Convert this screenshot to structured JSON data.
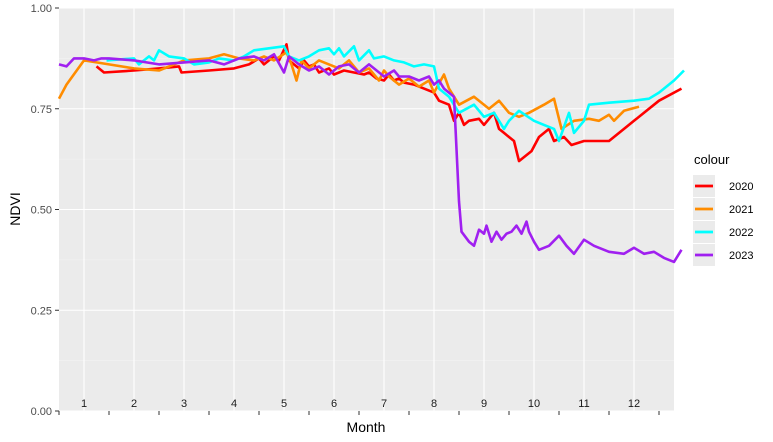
{
  "chart_data": {
    "type": "line",
    "xlabel": "Month",
    "ylabel": "NDVI",
    "xlim": [
      0,
      12.3
    ],
    "ylim": [
      0,
      1
    ],
    "y_ticks": [
      "0.00",
      "0.25",
      "0.50",
      "0.75",
      "1.00"
    ],
    "month_labels": [
      "1",
      "2",
      "3",
      "4",
      "5",
      "6",
      "7",
      "8",
      "9",
      "10",
      "11",
      "12"
    ],
    "grid": true,
    "legend": {
      "title": "colour",
      "position": "right"
    },
    "series": [
      {
        "name": "2020",
        "color": "#ff0000",
        "points": [
          [
            0.75,
            0.855
          ],
          [
            0.9,
            0.84
          ],
          [
            1.5,
            0.845
          ],
          [
            2.0,
            0.85
          ],
          [
            2.4,
            0.855
          ],
          [
            2.45,
            0.84
          ],
          [
            3.0,
            0.845
          ],
          [
            3.5,
            0.85
          ],
          [
            3.8,
            0.86
          ],
          [
            4.0,
            0.875
          ],
          [
            4.1,
            0.86
          ],
          [
            4.3,
            0.88
          ],
          [
            4.4,
            0.87
          ],
          [
            4.55,
            0.91
          ],
          [
            4.6,
            0.87
          ],
          [
            4.7,
            0.86
          ],
          [
            4.8,
            0.85
          ],
          [
            4.9,
            0.87
          ],
          [
            5.0,
            0.855
          ],
          [
            5.1,
            0.86
          ],
          [
            5.2,
            0.84
          ],
          [
            5.4,
            0.85
          ],
          [
            5.5,
            0.835
          ],
          [
            5.7,
            0.845
          ],
          [
            5.9,
            0.84
          ],
          [
            6.1,
            0.835
          ],
          [
            6.2,
            0.84
          ],
          [
            6.35,
            0.825
          ],
          [
            6.5,
            0.82
          ],
          [
            6.6,
            0.835
          ],
          [
            6.7,
            0.82
          ],
          [
            6.8,
            0.825
          ],
          [
            6.9,
            0.815
          ],
          [
            7.1,
            0.81
          ],
          [
            7.3,
            0.8
          ],
          [
            7.5,
            0.79
          ],
          [
            7.6,
            0.77
          ],
          [
            7.8,
            0.76
          ],
          [
            7.9,
            0.72
          ],
          [
            8.0,
            0.74
          ],
          [
            8.1,
            0.71
          ],
          [
            8.2,
            0.72
          ],
          [
            8.4,
            0.725
          ],
          [
            8.5,
            0.71
          ],
          [
            8.7,
            0.74
          ],
          [
            8.8,
            0.7
          ],
          [
            8.9,
            0.69
          ],
          [
            9.0,
            0.68
          ],
          [
            9.1,
            0.67
          ],
          [
            9.2,
            0.62
          ],
          [
            9.45,
            0.645
          ],
          [
            9.6,
            0.68
          ],
          [
            9.8,
            0.7
          ],
          [
            9.9,
            0.67
          ],
          [
            10.1,
            0.68
          ],
          [
            10.25,
            0.66
          ],
          [
            10.5,
            0.67
          ],
          [
            11.0,
            0.67
          ],
          [
            11.5,
            0.72
          ],
          [
            12.0,
            0.77
          ],
          [
            12.45,
            0.8
          ]
        ]
      },
      {
        "name": "2021",
        "color": "#ff8c00",
        "points": [
          [
            0.0,
            0.775
          ],
          [
            0.15,
            0.81
          ],
          [
            0.5,
            0.87
          ],
          [
            1.0,
            0.86
          ],
          [
            1.5,
            0.85
          ],
          [
            2.0,
            0.845
          ],
          [
            2.3,
            0.86
          ],
          [
            2.5,
            0.87
          ],
          [
            3.0,
            0.875
          ],
          [
            3.3,
            0.885
          ],
          [
            3.6,
            0.875
          ],
          [
            3.9,
            0.87
          ],
          [
            4.1,
            0.88
          ],
          [
            4.3,
            0.87
          ],
          [
            4.55,
            0.89
          ],
          [
            4.65,
            0.86
          ],
          [
            4.75,
            0.82
          ],
          [
            4.85,
            0.87
          ],
          [
            5.0,
            0.85
          ],
          [
            5.2,
            0.87
          ],
          [
            5.4,
            0.86
          ],
          [
            5.6,
            0.85
          ],
          [
            5.8,
            0.87
          ],
          [
            6.0,
            0.84
          ],
          [
            6.2,
            0.85
          ],
          [
            6.4,
            0.82
          ],
          [
            6.5,
            0.845
          ],
          [
            6.6,
            0.83
          ],
          [
            6.8,
            0.81
          ],
          [
            7.0,
            0.825
          ],
          [
            7.2,
            0.805
          ],
          [
            7.4,
            0.82
          ],
          [
            7.5,
            0.79
          ],
          [
            7.7,
            0.835
          ],
          [
            7.8,
            0.8
          ],
          [
            8.0,
            0.76
          ],
          [
            8.3,
            0.78
          ],
          [
            8.6,
            0.75
          ],
          [
            8.8,
            0.77
          ],
          [
            9.0,
            0.74
          ],
          [
            9.2,
            0.73
          ],
          [
            9.4,
            0.74
          ],
          [
            9.7,
            0.76
          ],
          [
            9.9,
            0.775
          ],
          [
            10.05,
            0.7
          ],
          [
            10.3,
            0.72
          ],
          [
            10.6,
            0.725
          ],
          [
            10.8,
            0.72
          ],
          [
            11.0,
            0.735
          ],
          [
            11.1,
            0.72
          ],
          [
            11.3,
            0.745
          ],
          [
            11.6,
            0.755
          ]
        ]
      },
      {
        "name": "2022",
        "color": "#00ffff",
        "points": [
          [
            0.95,
            0.87
          ],
          [
            1.5,
            0.875
          ],
          [
            1.6,
            0.86
          ],
          [
            1.8,
            0.88
          ],
          [
            1.9,
            0.87
          ],
          [
            2.0,
            0.895
          ],
          [
            2.2,
            0.88
          ],
          [
            2.5,
            0.875
          ],
          [
            2.7,
            0.86
          ],
          [
            3.0,
            0.865
          ],
          [
            3.2,
            0.875
          ],
          [
            3.5,
            0.87
          ],
          [
            3.7,
            0.88
          ],
          [
            3.9,
            0.895
          ],
          [
            4.2,
            0.9
          ],
          [
            4.5,
            0.905
          ],
          [
            4.6,
            0.88
          ],
          [
            4.8,
            0.87
          ],
          [
            5.0,
            0.88
          ],
          [
            5.2,
            0.895
          ],
          [
            5.4,
            0.9
          ],
          [
            5.5,
            0.885
          ],
          [
            5.6,
            0.9
          ],
          [
            5.7,
            0.88
          ],
          [
            5.9,
            0.905
          ],
          [
            6.0,
            0.87
          ],
          [
            6.2,
            0.895
          ],
          [
            6.3,
            0.875
          ],
          [
            6.5,
            0.88
          ],
          [
            6.7,
            0.87
          ],
          [
            6.9,
            0.865
          ],
          [
            7.1,
            0.855
          ],
          [
            7.3,
            0.86
          ],
          [
            7.5,
            0.855
          ],
          [
            7.6,
            0.8
          ],
          [
            7.8,
            0.78
          ],
          [
            8.0,
            0.74
          ],
          [
            8.3,
            0.76
          ],
          [
            8.5,
            0.73
          ],
          [
            8.7,
            0.74
          ],
          [
            8.9,
            0.7
          ],
          [
            9.0,
            0.72
          ],
          [
            9.2,
            0.745
          ],
          [
            9.5,
            0.72
          ],
          [
            9.7,
            0.71
          ],
          [
            9.9,
            0.7
          ],
          [
            10.0,
            0.67
          ],
          [
            10.2,
            0.74
          ],
          [
            10.3,
            0.69
          ],
          [
            10.5,
            0.72
          ],
          [
            10.6,
            0.76
          ],
          [
            11.0,
            0.765
          ],
          [
            11.5,
            0.77
          ],
          [
            11.8,
            0.775
          ],
          [
            12.0,
            0.79
          ],
          [
            12.3,
            0.82
          ],
          [
            12.5,
            0.845
          ]
        ]
      },
      {
        "name": "2023",
        "color": "#a020f0",
        "points": [
          [
            0.0,
            0.86
          ],
          [
            0.15,
            0.855
          ],
          [
            0.3,
            0.875
          ],
          [
            0.5,
            0.875
          ],
          [
            0.7,
            0.87
          ],
          [
            0.85,
            0.875
          ],
          [
            1.0,
            0.875
          ],
          [
            1.5,
            0.87
          ],
          [
            2.0,
            0.86
          ],
          [
            2.5,
            0.865
          ],
          [
            3.0,
            0.87
          ],
          [
            3.3,
            0.86
          ],
          [
            3.6,
            0.875
          ],
          [
            3.9,
            0.88
          ],
          [
            4.1,
            0.87
          ],
          [
            4.3,
            0.885
          ],
          [
            4.5,
            0.84
          ],
          [
            4.6,
            0.88
          ],
          [
            4.8,
            0.86
          ],
          [
            5.0,
            0.845
          ],
          [
            5.2,
            0.855
          ],
          [
            5.4,
            0.835
          ],
          [
            5.6,
            0.855
          ],
          [
            5.8,
            0.86
          ],
          [
            6.0,
            0.84
          ],
          [
            6.2,
            0.86
          ],
          [
            6.3,
            0.85
          ],
          [
            6.5,
            0.83
          ],
          [
            6.7,
            0.845
          ],
          [
            6.8,
            0.83
          ],
          [
            7.0,
            0.83
          ],
          [
            7.2,
            0.82
          ],
          [
            7.4,
            0.83
          ],
          [
            7.5,
            0.81
          ],
          [
            7.6,
            0.82
          ],
          [
            7.7,
            0.8
          ],
          [
            7.9,
            0.78
          ],
          [
            8.0,
            0.52
          ],
          [
            8.05,
            0.445
          ],
          [
            8.2,
            0.42
          ],
          [
            8.3,
            0.41
          ],
          [
            8.4,
            0.45
          ],
          [
            8.5,
            0.44
          ],
          [
            8.55,
            0.46
          ],
          [
            8.65,
            0.42
          ],
          [
            8.75,
            0.445
          ],
          [
            8.85,
            0.425
          ],
          [
            8.95,
            0.44
          ],
          [
            9.05,
            0.445
          ],
          [
            9.15,
            0.46
          ],
          [
            9.25,
            0.44
          ],
          [
            9.35,
            0.47
          ],
          [
            9.4,
            0.445
          ],
          [
            9.5,
            0.42
          ],
          [
            9.6,
            0.4
          ],
          [
            9.8,
            0.41
          ],
          [
            10.0,
            0.435
          ],
          [
            10.15,
            0.41
          ],
          [
            10.3,
            0.39
          ],
          [
            10.5,
            0.425
          ],
          [
            10.7,
            0.41
          ],
          [
            11.0,
            0.395
          ],
          [
            11.3,
            0.39
          ],
          [
            11.5,
            0.405
          ],
          [
            11.7,
            0.39
          ],
          [
            11.9,
            0.395
          ],
          [
            12.1,
            0.38
          ],
          [
            12.3,
            0.37
          ],
          [
            12.45,
            0.4
          ]
        ]
      }
    ]
  }
}
